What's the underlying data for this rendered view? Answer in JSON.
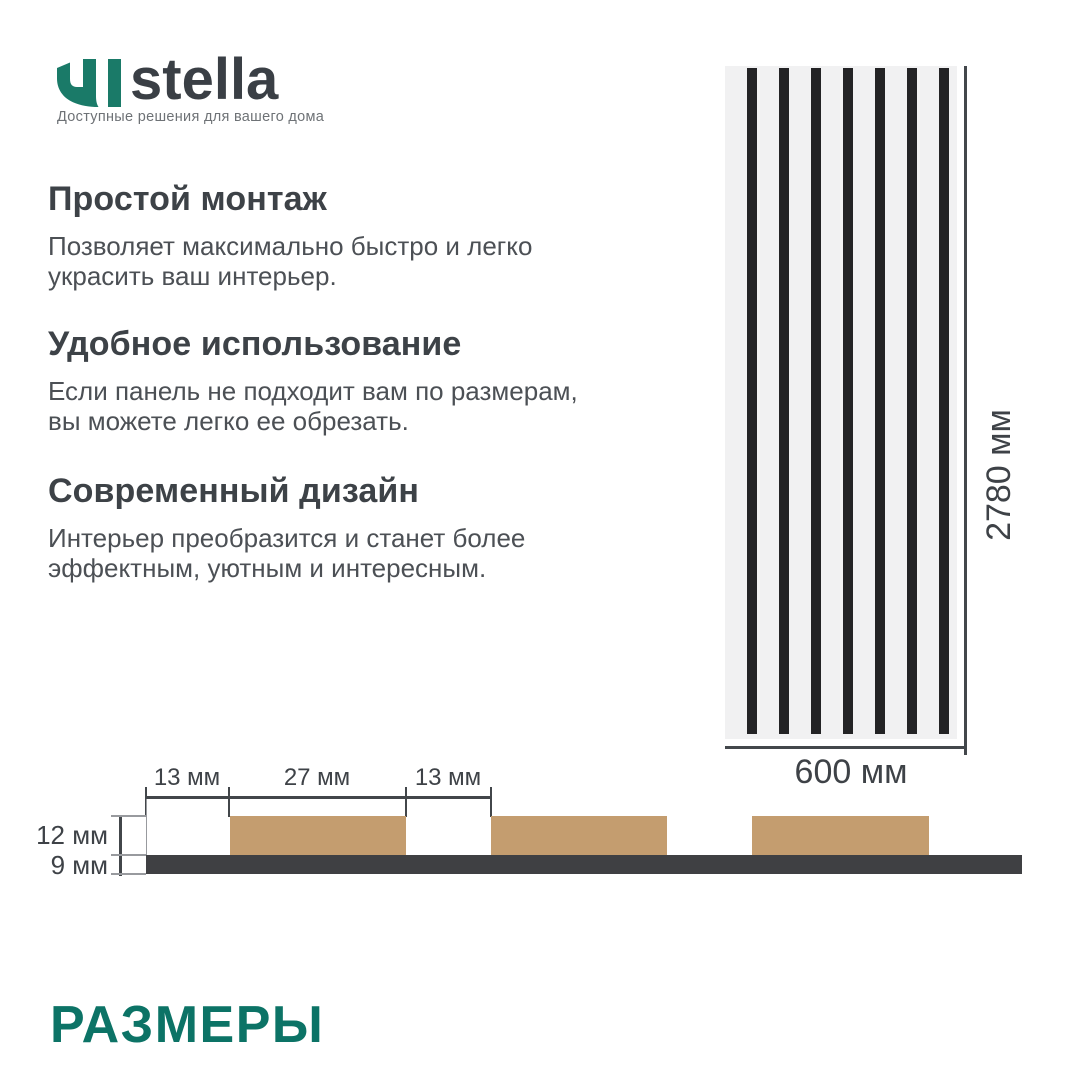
{
  "brand": {
    "name": "stella",
    "tagline": "Доступные решения для вашего дома",
    "mark_color": "#1a7a68"
  },
  "features": [
    {
      "title": "Простой монтаж",
      "body": "Позволяет максимально быстро и легко украсить ваш интерьер."
    },
    {
      "title": "Удобное использование",
      "body": "Если панель не подходит вам по размерам, вы можете легко ее обрезать."
    },
    {
      "title": "Современный дизайн",
      "body": "Интерьер преобразится и станет более эффектным, уютным и интересным."
    }
  ],
  "panel": {
    "stripe_count": 7,
    "height_label": "2780 мм",
    "width_label": "600 мм",
    "background": "#f1f1f2",
    "stripe_color": "#232325"
  },
  "cross_section": {
    "top_dims": [
      "13 мм",
      "27 мм",
      "13 мм"
    ],
    "side_dims": [
      "12 мм",
      "9 мм"
    ],
    "slat_count": 3,
    "slat_color": "#c49d6f",
    "base_color": "#3f4043"
  },
  "section_title": "РАЗМЕРЫ",
  "colors": {
    "accent_teal": "#0c7366",
    "heading": "#3d4247",
    "body_text": "#4c5055"
  }
}
